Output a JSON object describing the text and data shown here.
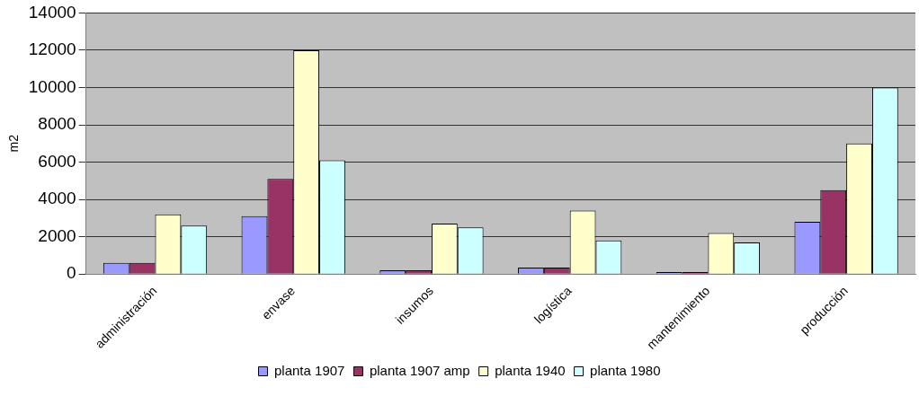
{
  "chart_data": {
    "type": "bar",
    "ylabel": "m2",
    "categories": [
      "administración",
      "envase",
      "insumos",
      "logística",
      "mantenimiento",
      "producción"
    ],
    "series": [
      {
        "name": "planta 1907",
        "color": "#9999ff",
        "values": [
          600,
          3100,
          200,
          350,
          100,
          2800
        ]
      },
      {
        "name": "planta 1907 amp",
        "color": "#993366",
        "values": [
          600,
          5100,
          200,
          350,
          100,
          4500
        ]
      },
      {
        "name": "planta 1940",
        "color": "#ffffcc",
        "values": [
          3200,
          12000,
          2700,
          3400,
          2200,
          7000
        ]
      },
      {
        "name": "planta 1980",
        "color": "#ccffff",
        "values": [
          2600,
          6100,
          2500,
          1800,
          1700,
          10000
        ]
      }
    ],
    "ylim": [
      0,
      14000
    ],
    "yticks": [
      0,
      2000,
      4000,
      6000,
      8000,
      10000,
      12000,
      14000
    ],
    "grid": "y",
    "legend": "bottom"
  }
}
